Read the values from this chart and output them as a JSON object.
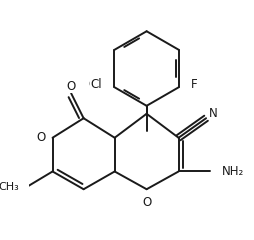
{
  "background_color": "#ffffff",
  "line_color": "#1a1a1a",
  "line_width": 1.4,
  "font_size": 8.5,
  "figsize": [
    2.54,
    2.4
  ],
  "dpi": 100,
  "xlim": [
    0,
    254
  ],
  "ylim": [
    0,
    240
  ]
}
